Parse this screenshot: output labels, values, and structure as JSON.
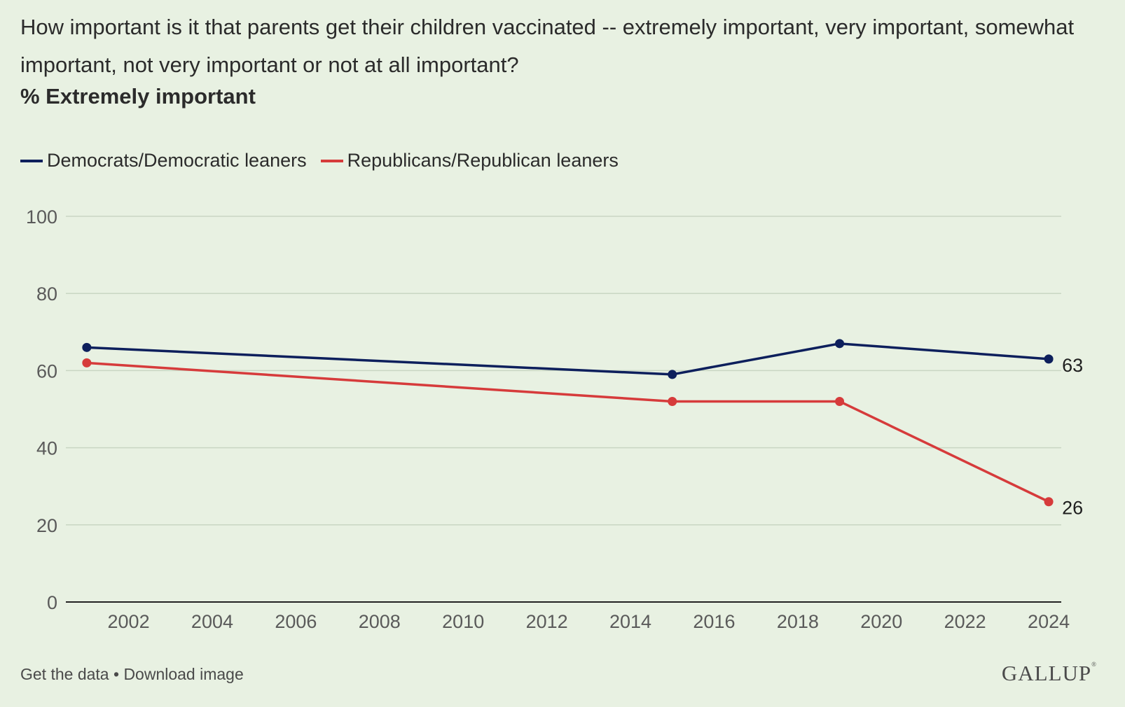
{
  "header": {
    "question": "How important is it that parents get their children vaccinated -- extremely important, very important, somewhat important, not very important or not at all important?",
    "subtitle": "% Extremely important"
  },
  "footer": {
    "get_data": "Get the data",
    "separator": "•",
    "download": "Download image",
    "logo": "GALLUP",
    "logo_mark": "®"
  },
  "colors": {
    "democrats": "#0d1f5c",
    "republicans": "#d63b3b",
    "grid": "#c9d6c3",
    "axis": "#222222",
    "tick_text": "#5a5a5a"
  },
  "chart_data": {
    "type": "line",
    "title": "% Extremely important",
    "xlim": [
      2000.5,
      2024.3
    ],
    "ylim": [
      0,
      100
    ],
    "x_ticks": [
      2002,
      2004,
      2006,
      2008,
      2010,
      2012,
      2014,
      2016,
      2018,
      2020,
      2022,
      2024
    ],
    "y_ticks": [
      0,
      20,
      40,
      60,
      80,
      100
    ],
    "grid": true,
    "legend_position": "top-left",
    "series": [
      {
        "name": "Democrats/Democratic leaners",
        "color": "#0d1f5c",
        "x": [
          2001,
          2015,
          2019,
          2024
        ],
        "values": [
          66,
          59,
          67,
          63
        ],
        "end_label": "63"
      },
      {
        "name": "Republicans/Republican leaners",
        "color": "#d63b3b",
        "x": [
          2001,
          2015,
          2019,
          2024
        ],
        "values": [
          62,
          52,
          52,
          26
        ],
        "end_label": "26"
      }
    ]
  }
}
